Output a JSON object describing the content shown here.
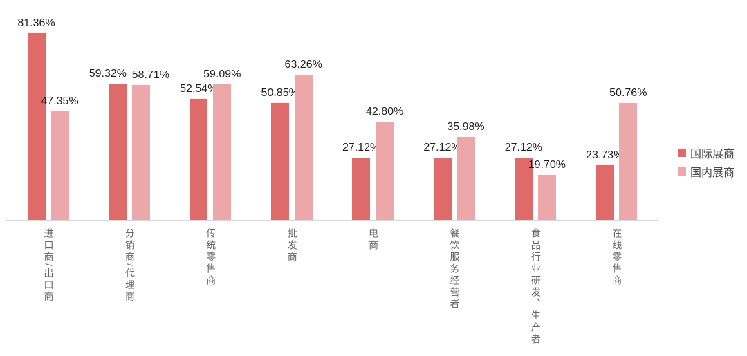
{
  "chart_data": {
    "type": "bar",
    "categories": [
      "进口商/出口商",
      "分销商/代理商",
      "传统零售商",
      "批发商",
      "电商",
      "餐饮服务经营者",
      "食品行业研发、生产者",
      "在线零售商"
    ],
    "series": [
      {
        "name": "国际展商",
        "color": "#DF6A6A",
        "values": [
          81.36,
          59.32,
          52.54,
          50.85,
          27.12,
          27.12,
          27.12,
          23.73
        ]
      },
      {
        "name": "国内展商",
        "color": "#EBA7A9",
        "values": [
          47.35,
          58.71,
          59.09,
          63.26,
          42.8,
          35.98,
          19.7,
          50.76
        ]
      }
    ],
    "value_labels": [
      [
        "81.36%",
        "59.32%",
        "52.54%",
        "50.85%",
        "27.12%",
        "27.12%",
        "27.12%",
        "23.73%"
      ],
      [
        "47.35%",
        "58.71%",
        "59.09%",
        "63.26%",
        "42.80%",
        "35.98%",
        "19.70%",
        "50.76%"
      ]
    ],
    "title": "",
    "xlabel": "",
    "ylabel": "",
    "ylim": [
      0,
      90
    ],
    "grid": false,
    "legend_position": "right-center",
    "axis_line_color": "#d9d9d9",
    "value_label_color": "#1f1f1f",
    "category_label_color": "#666666"
  }
}
